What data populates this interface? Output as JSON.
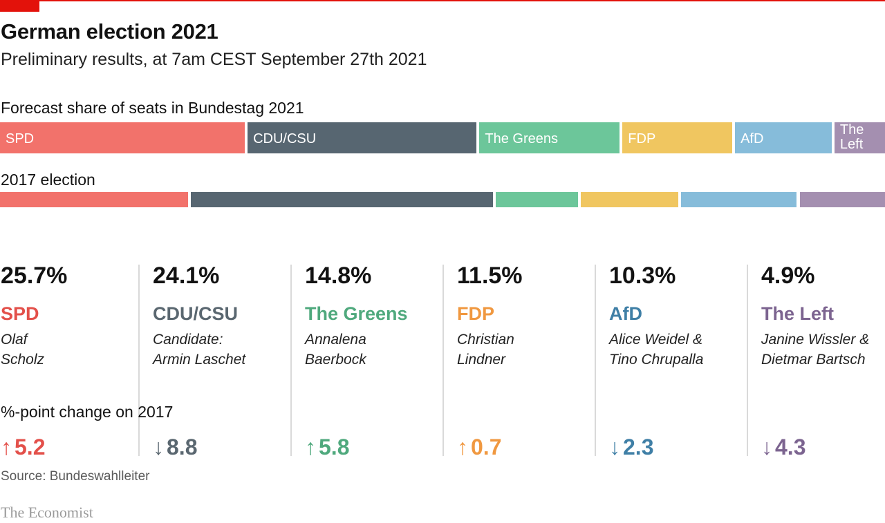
{
  "header": {
    "title": "German election 2021",
    "subtitle": "Preliminary results, at 7am CEST September 27th 2021"
  },
  "colors": {
    "accent": "#e3120b",
    "SPD": "#f2726b",
    "CDU/CSU": "#576671",
    "The Greens": "#6cc69a",
    "FDP": "#f0c660",
    "AfD": "#86bcda",
    "The Left": "#a48fb0"
  },
  "text_colors": {
    "SPD": "#e3504a",
    "CDU/CSU": "#5a6770",
    "The Greens": "#4fa97d",
    "FDP": "#f09840",
    "AfD": "#3f7fa6",
    "The Left": "#7c6490"
  },
  "chart_data": [
    {
      "type": "bar",
      "orientation": "horizontal-stacked",
      "title": "Forecast share of seats in Bundestag 2021",
      "categories": [
        "SPD",
        "CDU/CSU",
        "The Greens",
        "FDP",
        "AfD",
        "The Left"
      ],
      "labels": [
        "SPD",
        "CDU/CSU",
        "The Greens",
        "FDP",
        "AfD",
        "The\nLeft"
      ],
      "values": [
        28.1,
        26.3,
        16.1,
        12.6,
        11.1,
        5.8
      ],
      "unit": "% of seats"
    },
    {
      "type": "bar",
      "orientation": "horizontal-stacked",
      "title": "2017 election",
      "categories": [
        "SPD",
        "CDU/CSU",
        "The Greens",
        "FDP",
        "AfD",
        "The Left"
      ],
      "values": [
        21.6,
        34.7,
        9.4,
        11.2,
        13.3,
        9.8
      ],
      "unit": "% of seats"
    }
  ],
  "results": {
    "change_label": "%-point change on 2017",
    "parties": [
      {
        "pct": "25.7%",
        "name": "SPD",
        "candidate": "Olaf\nScholz",
        "arrow": "↑",
        "change": "5.2"
      },
      {
        "pct": "24.1%",
        "name": "CDU/CSU",
        "candidate": "Candidate:\nArmin Laschet",
        "arrow": "↓",
        "change": "8.8"
      },
      {
        "pct": "14.8%",
        "name": "The Greens",
        "candidate": "Annalena\nBaerbock",
        "arrow": "↑",
        "change": "5.8"
      },
      {
        "pct": "11.5%",
        "name": "FDP",
        "candidate": "Christian\nLindner",
        "arrow": "↑",
        "change": "0.7"
      },
      {
        "pct": "10.3%",
        "name": "AfD",
        "candidate": "Alice Weidel &\nTino Chrupalla",
        "arrow": "↓",
        "change": "2.3"
      },
      {
        "pct": "4.9%",
        "name": "The Left",
        "candidate": "Janine Wissler &\nDietmar Bartsch",
        "arrow": "↓",
        "change": "4.3"
      }
    ]
  },
  "footer": {
    "source": "Source: Bundeswahlleiter",
    "brand": "The Economist"
  }
}
